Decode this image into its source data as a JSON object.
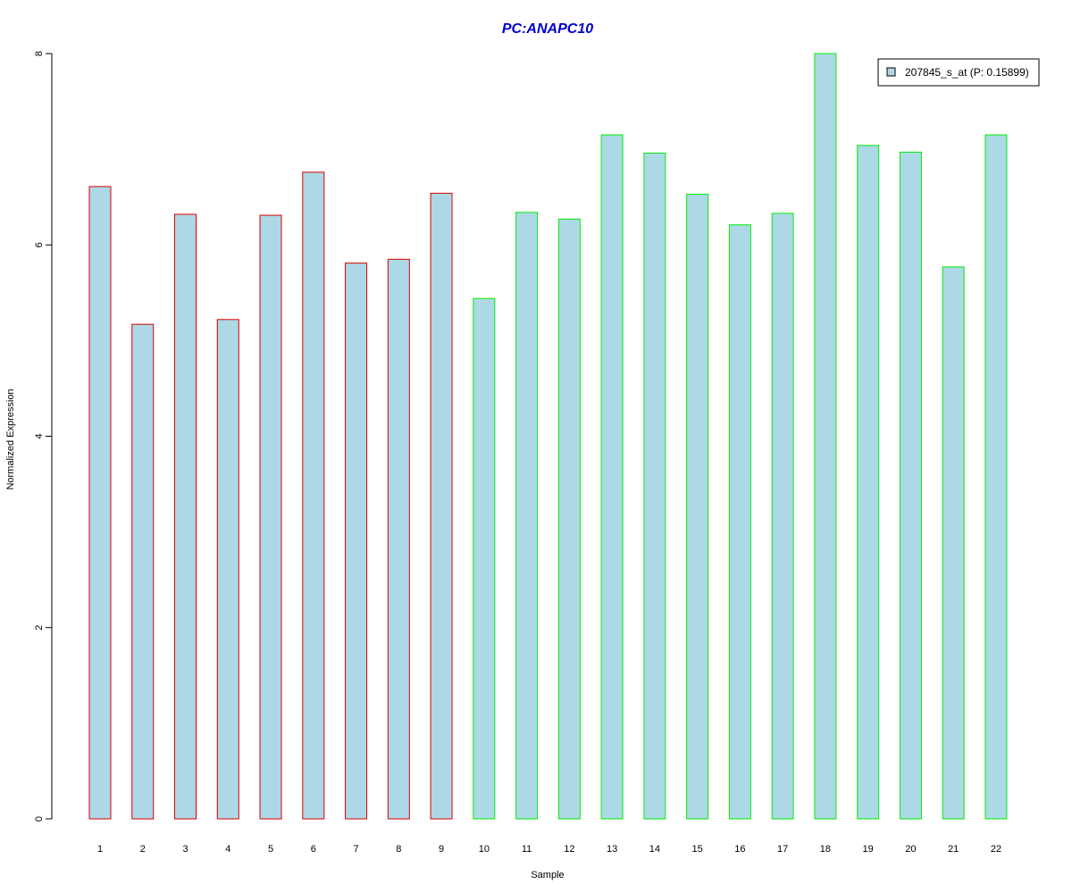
{
  "chart_data": {
    "type": "bar",
    "title": "PC:ANAPC10",
    "xlabel": "Sample",
    "ylabel": "Normalized Expression",
    "ylim": [
      0,
      8
    ],
    "yticks": [
      "0",
      "2",
      "4",
      "6",
      "8"
    ],
    "categories": [
      "1",
      "2",
      "3",
      "4",
      "5",
      "6",
      "7",
      "8",
      "9",
      "10",
      "11",
      "12",
      "13",
      "14",
      "15",
      "16",
      "17",
      "18",
      "19",
      "20",
      "21",
      "22"
    ],
    "series": [
      {
        "name": "207845_s_at (P: 0.15899)",
        "values": [
          6.61,
          5.17,
          6.32,
          5.22,
          6.31,
          6.76,
          5.81,
          5.85,
          6.54,
          5.44,
          6.34,
          6.27,
          7.15,
          6.96,
          6.53,
          6.21,
          6.33,
          8.0,
          7.04,
          6.97,
          5.77,
          7.15
        ]
      }
    ],
    "groups": [
      1,
      1,
      1,
      1,
      1,
      1,
      1,
      1,
      1,
      2,
      2,
      2,
      2,
      2,
      2,
      2,
      2,
      2,
      2,
      2,
      2,
      2
    ],
    "legend_position": "top-right",
    "grid": false,
    "colors": {
      "title": "#0000CC",
      "fill": "#ADD8E6",
      "group1_border": "#DD0000",
      "group2_border": "#00EE00",
      "axis": "#000000"
    }
  }
}
